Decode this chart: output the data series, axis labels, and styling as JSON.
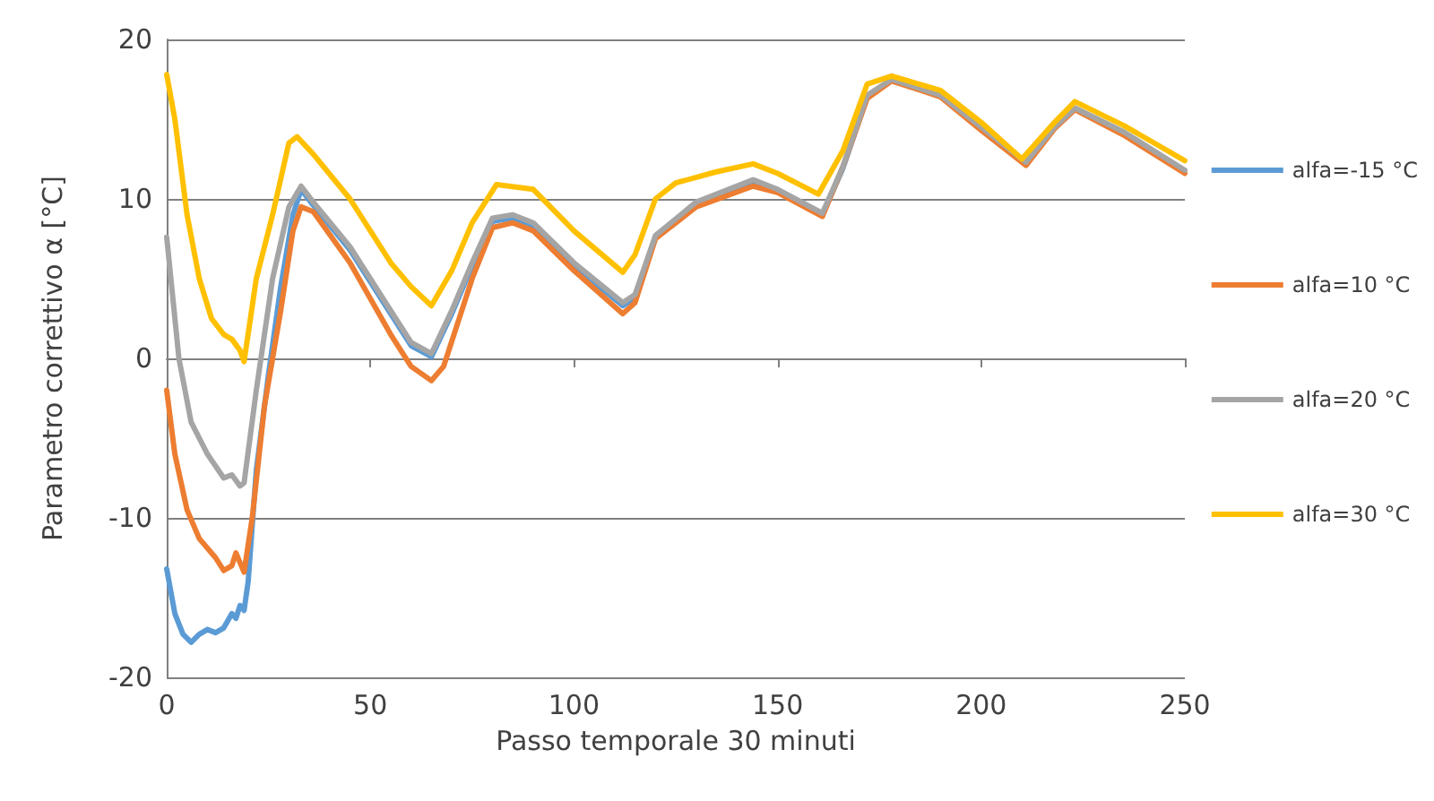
{
  "chart_data": {
    "type": "line",
    "xlabel": "Passo temporale 30 minuti",
    "ylabel": "Parametro correttivo α [°C]",
    "xlim": [
      0,
      250
    ],
    "xticks": [
      0,
      50,
      100,
      150,
      200,
      250
    ],
    "ylim": [
      -20,
      20
    ],
    "yticks": [
      -20,
      -10,
      0,
      10,
      20
    ],
    "grid": "y",
    "legend": "right",
    "marker": "none",
    "line_style": "solid",
    "series": [
      {
        "name": "alfa=-15 °C",
        "color": "#5b9bd5",
        "x": [
          0,
          2,
          4,
          6,
          8,
          10,
          12,
          14,
          16,
          17,
          18,
          19,
          20,
          22,
          25,
          28,
          31,
          33,
          36,
          45,
          55,
          60,
          65,
          70,
          75,
          80,
          85,
          90,
          100,
          112,
          115,
          120,
          130,
          144,
          150,
          161,
          166,
          172
        ],
        "values": [
          -13.2,
          -16,
          -17.3,
          -17.8,
          -17.3,
          -17,
          -17.2,
          -16.9,
          -16,
          -16.3,
          -15.5,
          -15.8,
          -14,
          -7,
          -1,
          4.5,
          9,
          10.6,
          9.6,
          6.8,
          2.8,
          0.8,
          0.1,
          2.8,
          5.8,
          8.6,
          8.8,
          8.3,
          5.8,
          3.3,
          3.8,
          7.6,
          9.7,
          11.1,
          10.5,
          9,
          11.9,
          16.4
        ]
      },
      {
        "name": "alfa=10 °C",
        "color": "#ed7d31",
        "x": [
          0,
          2,
          5,
          8,
          12,
          14,
          16,
          17,
          18,
          19,
          21,
          24,
          28,
          31,
          33,
          36,
          45,
          55,
          60,
          65,
          68,
          75,
          80,
          85,
          90,
          100,
          112,
          115,
          120,
          130,
          144,
          150,
          161,
          166,
          172,
          178,
          190,
          200,
          211,
          218,
          223,
          235,
          250
        ],
        "values": [
          -2,
          -6,
          -9.5,
          -11.3,
          -12.5,
          -13.3,
          -13,
          -12.2,
          -12.8,
          -13.4,
          -10,
          -3,
          3,
          8,
          9.5,
          9.2,
          6,
          1.5,
          -0.5,
          -1.4,
          -0.5,
          5,
          8.2,
          8.5,
          8,
          5.5,
          2.8,
          3.5,
          7.5,
          9.5,
          10.8,
          10.4,
          8.9,
          12,
          16.3,
          17.4,
          16.4,
          14.3,
          12.1,
          14.4,
          15.6,
          14,
          11.6
        ]
      },
      {
        "name": "alfa=20 °C",
        "color": "#a5a5a5",
        "x": [
          0,
          3,
          6,
          10,
          14,
          16,
          18,
          19,
          22,
          26,
          30,
          33,
          36,
          45,
          55,
          60,
          65,
          70,
          75,
          80,
          85,
          90,
          100,
          112,
          115,
          120,
          130,
          144,
          150,
          161,
          166,
          172,
          178,
          190,
          200,
          211,
          218,
          223,
          235,
          250
        ],
        "values": [
          7.6,
          0,
          -4,
          -6,
          -7.5,
          -7.3,
          -8,
          -7.8,
          -2,
          5,
          9.5,
          10.8,
          9.8,
          7,
          3,
          1,
          0.3,
          3,
          6,
          8.8,
          9,
          8.5,
          6,
          3.5,
          4,
          7.7,
          9.8,
          11.2,
          10.6,
          9.1,
          12,
          16.5,
          17.5,
          16.5,
          14.5,
          12.3,
          14.5,
          15.7,
          14.2,
          11.8
        ]
      },
      {
        "name": "alfa=30 °C",
        "color": "#ffc000",
        "x": [
          0,
          2,
          5,
          8,
          11,
          14,
          16,
          18,
          19,
          22,
          26,
          30,
          32,
          36,
          45,
          55,
          60,
          65,
          70,
          75,
          81,
          90,
          100,
          112,
          115,
          120,
          125,
          135,
          144,
          150,
          160,
          166,
          172,
          178,
          190,
          200,
          210,
          218,
          223,
          235,
          250
        ],
        "values": [
          17.8,
          15,
          9,
          5,
          2.5,
          1.5,
          1.2,
          0.5,
          -0.2,
          5,
          9,
          13.5,
          13.9,
          12.8,
          10,
          6,
          4.5,
          3.3,
          5.5,
          8.5,
          10.9,
          10.6,
          8,
          5.4,
          6.5,
          10,
          11,
          11.7,
          12.2,
          11.6,
          10.3,
          13,
          17.2,
          17.7,
          16.8,
          14.8,
          12.5,
          14.8,
          16.1,
          14.6,
          12.4
        ]
      }
    ]
  }
}
